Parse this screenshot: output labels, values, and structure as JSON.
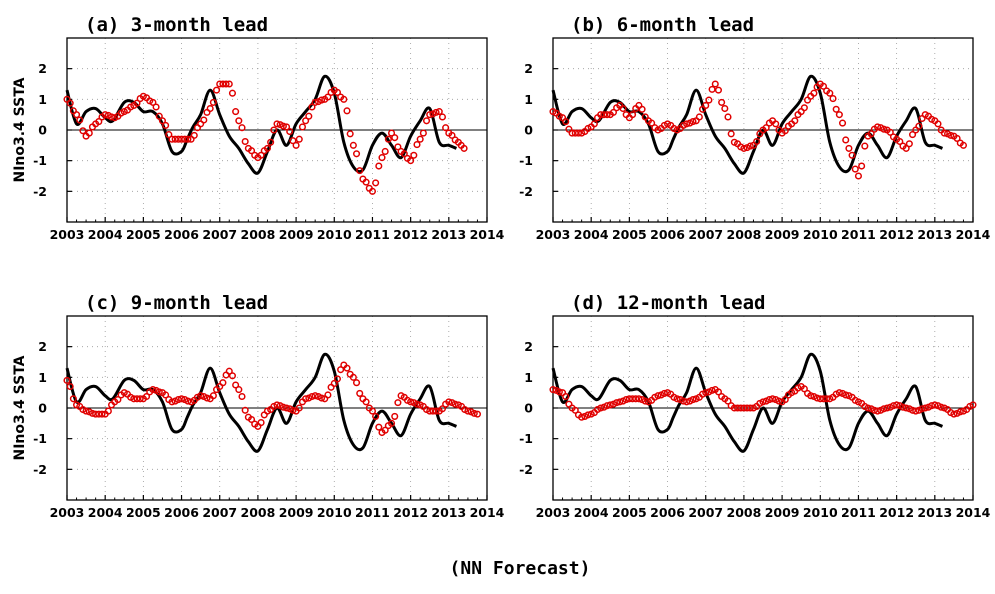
{
  "figure": {
    "caption": "(NN Forecast)"
  },
  "chart_data": [
    {
      "type": "line",
      "title": "(a) 3-month lead",
      "ylabel": "NIno3.4 SSTA",
      "xlim": [
        2003,
        2014
      ],
      "ylim": [
        -3,
        3
      ],
      "x_ticks": [
        "2003",
        "2004",
        "2005",
        "2006",
        "2007",
        "2008",
        "2009",
        "2010",
        "2011",
        "2012",
        "2013",
        "2014"
      ],
      "y_ticks": [
        "2",
        "1",
        "0",
        "-1",
        "-2"
      ],
      "grid": true,
      "series": [
        {
          "style": "black-line",
          "color": "#000000",
          "x": [
            2003.0,
            2003.25,
            2003.5,
            2003.75,
            2004.0,
            2004.2,
            2004.5,
            2004.75,
            2005.0,
            2005.25,
            2005.5,
            2005.75,
            2006.0,
            2006.15,
            2006.3,
            2006.5,
            2006.75,
            2007.0,
            2007.25,
            2007.5,
            2007.75,
            2008.0,
            2008.25,
            2008.5,
            2008.75,
            2009.0,
            2009.25,
            2009.5,
            2009.75,
            2010.0,
            2010.25,
            2010.5,
            2010.75,
            2011.0,
            2011.25,
            2011.5,
            2011.75,
            2012.0,
            2012.25,
            2012.5,
            2012.75,
            2013.0,
            2013.2
          ],
          "y": [
            1.3,
            0.2,
            0.6,
            0.7,
            0.4,
            0.3,
            0.9,
            0.9,
            0.6,
            0.6,
            0.2,
            -0.7,
            -0.7,
            -0.3,
            0.1,
            0.5,
            1.3,
            0.5,
            -0.2,
            -0.6,
            -1.1,
            -1.4,
            -0.7,
            0.0,
            -0.5,
            0.2,
            0.6,
            1.0,
            1.75,
            1.2,
            -0.4,
            -1.2,
            -1.3,
            -0.5,
            -0.1,
            -0.5,
            -0.9,
            -0.2,
            0.3,
            0.7,
            -0.4,
            -0.5,
            -0.6
          ]
        },
        {
          "style": "red-circles",
          "color": "#e00000",
          "x": [
            2003.0,
            2003.25,
            2003.5,
            2003.75,
            2004.0,
            2004.25,
            2004.5,
            2004.75,
            2005.0,
            2005.25,
            2005.5,
            2005.75,
            2006.0,
            2006.25,
            2006.5,
            2006.75,
            2007.0,
            2007.25,
            2007.5,
            2007.75,
            2008.0,
            2008.25,
            2008.5,
            2008.75,
            2009.0,
            2009.25,
            2009.5,
            2009.75,
            2010.0,
            2010.25,
            2010.5,
            2010.75,
            2011.0,
            2011.25,
            2011.5,
            2011.75,
            2012.0,
            2012.25,
            2012.5,
            2012.75,
            2013.0,
            2013.25,
            2013.4
          ],
          "y": [
            1.0,
            0.5,
            -0.2,
            0.2,
            0.5,
            0.4,
            0.6,
            0.8,
            1.1,
            0.9,
            0.3,
            -0.3,
            -0.3,
            -0.3,
            0.2,
            0.7,
            1.5,
            1.5,
            0.3,
            -0.6,
            -0.9,
            -0.6,
            0.2,
            0.1,
            -0.5,
            0.3,
            0.9,
            1.0,
            1.3,
            1.0,
            -0.5,
            -1.6,
            -2.0,
            -0.9,
            -0.1,
            -0.7,
            -1.0,
            -0.3,
            0.5,
            0.6,
            -0.1,
            -0.4,
            -0.6
          ]
        }
      ]
    },
    {
      "type": "line",
      "title": "(b) 6-month lead",
      "ylabel": "",
      "xlim": [
        2003,
        2014
      ],
      "ylim": [
        -3,
        3
      ],
      "x_ticks": [
        "2003",
        "2004",
        "2005",
        "2006",
        "2007",
        "2008",
        "2009",
        "2010",
        "2011",
        "2012",
        "2013",
        "2014"
      ],
      "y_ticks": [
        "2",
        "1",
        "0",
        "-1",
        "-2"
      ],
      "grid": true,
      "series": [
        {
          "style": "black-line",
          "color": "#000000",
          "x": [
            2003.0,
            2003.25,
            2003.5,
            2003.75,
            2004.0,
            2004.2,
            2004.5,
            2004.75,
            2005.0,
            2005.25,
            2005.5,
            2005.75,
            2006.0,
            2006.15,
            2006.3,
            2006.5,
            2006.75,
            2007.0,
            2007.25,
            2007.5,
            2007.75,
            2008.0,
            2008.25,
            2008.5,
            2008.75,
            2009.0,
            2009.25,
            2009.5,
            2009.75,
            2010.0,
            2010.25,
            2010.5,
            2010.75,
            2011.0,
            2011.25,
            2011.5,
            2011.75,
            2012.0,
            2012.25,
            2012.5,
            2012.75,
            2013.0,
            2013.2
          ],
          "y": [
            1.3,
            0.2,
            0.6,
            0.7,
            0.4,
            0.3,
            0.9,
            0.9,
            0.6,
            0.6,
            0.2,
            -0.7,
            -0.7,
            -0.3,
            0.1,
            0.5,
            1.3,
            0.5,
            -0.2,
            -0.6,
            -1.1,
            -1.4,
            -0.7,
            0.0,
            -0.5,
            0.2,
            0.6,
            1.0,
            1.75,
            1.2,
            -0.4,
            -1.2,
            -1.3,
            -0.5,
            -0.1,
            -0.5,
            -0.9,
            -0.2,
            0.3,
            0.7,
            -0.4,
            -0.5,
            -0.6
          ]
        },
        {
          "style": "red-circles",
          "color": "#e00000",
          "x": [
            2003.0,
            2003.25,
            2003.5,
            2003.75,
            2004.0,
            2004.25,
            2004.5,
            2004.75,
            2005.0,
            2005.25,
            2005.5,
            2005.75,
            2006.0,
            2006.25,
            2006.5,
            2006.75,
            2007.0,
            2007.25,
            2007.5,
            2007.75,
            2008.0,
            2008.25,
            2008.5,
            2008.75,
            2009.0,
            2009.25,
            2009.5,
            2009.75,
            2010.0,
            2010.25,
            2010.5,
            2010.75,
            2011.0,
            2011.25,
            2011.5,
            2011.75,
            2012.0,
            2012.25,
            2012.5,
            2012.75,
            2013.0,
            2013.25,
            2013.5,
            2013.75
          ],
          "y": [
            0.6,
            0.4,
            -0.1,
            -0.1,
            0.1,
            0.5,
            0.5,
            0.8,
            0.4,
            0.8,
            0.3,
            0.0,
            0.2,
            0.0,
            0.2,
            0.3,
            0.8,
            1.5,
            0.7,
            -0.4,
            -0.6,
            -0.5,
            0.0,
            0.3,
            -0.1,
            0.2,
            0.6,
            1.1,
            1.5,
            1.2,
            0.5,
            -0.6,
            -1.5,
            -0.2,
            0.1,
            0.0,
            -0.3,
            -0.6,
            0.0,
            0.5,
            0.3,
            -0.1,
            -0.2,
            -0.5
          ]
        }
      ]
    },
    {
      "type": "line",
      "title": "(c) 9-month lead",
      "ylabel": "NIno3.4 SSTA",
      "xlim": [
        2003,
        2014
      ],
      "ylim": [
        -3,
        3
      ],
      "x_ticks": [
        "2003",
        "2004",
        "2005",
        "2006",
        "2007",
        "2008",
        "2009",
        "2010",
        "2011",
        "2012",
        "2013",
        "2014"
      ],
      "y_ticks": [
        "2",
        "1",
        "0",
        "-1",
        "-2"
      ],
      "grid": true,
      "series": [
        {
          "style": "black-line",
          "color": "#000000",
          "x": [
            2003.0,
            2003.25,
            2003.5,
            2003.75,
            2004.0,
            2004.2,
            2004.5,
            2004.75,
            2005.0,
            2005.25,
            2005.5,
            2005.75,
            2006.0,
            2006.15,
            2006.3,
            2006.5,
            2006.75,
            2007.0,
            2007.25,
            2007.5,
            2007.75,
            2008.0,
            2008.25,
            2008.5,
            2008.75,
            2009.0,
            2009.25,
            2009.5,
            2009.75,
            2010.0,
            2010.25,
            2010.5,
            2010.75,
            2011.0,
            2011.25,
            2011.5,
            2011.75,
            2012.0,
            2012.25,
            2012.5,
            2012.75,
            2013.0,
            2013.2
          ],
          "y": [
            1.3,
            0.2,
            0.6,
            0.7,
            0.4,
            0.3,
            0.9,
            0.9,
            0.6,
            0.6,
            0.2,
            -0.7,
            -0.7,
            -0.3,
            0.1,
            0.5,
            1.3,
            0.5,
            -0.2,
            -0.6,
            -1.1,
            -1.4,
            -0.7,
            0.0,
            -0.5,
            0.2,
            0.6,
            1.0,
            1.75,
            1.2,
            -0.4,
            -1.2,
            -1.3,
            -0.5,
            -0.1,
            -0.5,
            -0.9,
            -0.2,
            0.3,
            0.7,
            -0.4,
            -0.5,
            -0.6
          ]
        },
        {
          "style": "red-circles",
          "color": "#e00000",
          "x": [
            2003.0,
            2003.25,
            2003.5,
            2003.75,
            2004.0,
            2004.25,
            2004.5,
            2004.75,
            2005.0,
            2005.25,
            2005.5,
            2005.75,
            2006.0,
            2006.25,
            2006.5,
            2006.75,
            2007.0,
            2007.25,
            2007.5,
            2007.75,
            2008.0,
            2008.25,
            2008.5,
            2008.75,
            2009.0,
            2009.25,
            2009.5,
            2009.75,
            2010.0,
            2010.25,
            2010.5,
            2010.75,
            2011.0,
            2011.25,
            2011.5,
            2011.75,
            2012.0,
            2012.25,
            2012.5,
            2012.75,
            2013.0,
            2013.25,
            2013.5,
            2013.75
          ],
          "y": [
            0.9,
            0.1,
            -0.1,
            -0.2,
            -0.2,
            0.2,
            0.5,
            0.3,
            0.3,
            0.6,
            0.5,
            0.2,
            0.3,
            0.2,
            0.4,
            0.3,
            0.7,
            1.2,
            0.6,
            -0.3,
            -0.6,
            -0.1,
            0.1,
            0.0,
            -0.1,
            0.3,
            0.4,
            0.3,
            0.8,
            1.4,
            1.0,
            0.3,
            -0.1,
            -0.8,
            -0.5,
            0.4,
            0.2,
            0.1,
            -0.1,
            -0.1,
            0.2,
            0.1,
            -0.1,
            -0.2
          ]
        }
      ]
    },
    {
      "type": "line",
      "title": "(d) 12-month lead",
      "ylabel": "",
      "xlim": [
        2003,
        2014
      ],
      "ylim": [
        -3,
        3
      ],
      "x_ticks": [
        "2003",
        "2004",
        "2005",
        "2006",
        "2007",
        "2008",
        "2009",
        "2010",
        "2011",
        "2012",
        "2013",
        "2014"
      ],
      "y_ticks": [
        "2",
        "1",
        "0",
        "-1",
        "-2"
      ],
      "grid": true,
      "series": [
        {
          "style": "black-line",
          "color": "#000000",
          "x": [
            2003.0,
            2003.25,
            2003.5,
            2003.75,
            2004.0,
            2004.2,
            2004.5,
            2004.75,
            2005.0,
            2005.25,
            2005.5,
            2005.75,
            2006.0,
            2006.15,
            2006.3,
            2006.5,
            2006.75,
            2007.0,
            2007.25,
            2007.5,
            2007.75,
            2008.0,
            2008.25,
            2008.5,
            2008.75,
            2009.0,
            2009.25,
            2009.5,
            2009.75,
            2010.0,
            2010.25,
            2010.5,
            2010.75,
            2011.0,
            2011.25,
            2011.5,
            2011.75,
            2012.0,
            2012.25,
            2012.5,
            2012.75,
            2013.0,
            2013.2
          ],
          "y": [
            1.3,
            0.2,
            0.6,
            0.7,
            0.4,
            0.3,
            0.9,
            0.9,
            0.6,
            0.6,
            0.2,
            -0.7,
            -0.7,
            -0.3,
            0.1,
            0.5,
            1.3,
            0.5,
            -0.2,
            -0.6,
            -1.1,
            -1.4,
            -0.7,
            0.0,
            -0.5,
            0.2,
            0.6,
            1.0,
            1.75,
            1.2,
            -0.4,
            -1.2,
            -1.3,
            -0.5,
            -0.1,
            -0.5,
            -0.9,
            -0.2,
            0.3,
            0.7,
            -0.4,
            -0.5,
            -0.6
          ]
        },
        {
          "style": "red-circles",
          "color": "#e00000",
          "x": [
            2003.0,
            2003.25,
            2003.5,
            2003.75,
            2004.0,
            2004.25,
            2004.5,
            2004.75,
            2005.0,
            2005.25,
            2005.5,
            2005.75,
            2006.0,
            2006.25,
            2006.5,
            2006.75,
            2007.0,
            2007.25,
            2007.5,
            2007.75,
            2008.0,
            2008.25,
            2008.5,
            2008.75,
            2009.0,
            2009.25,
            2009.5,
            2009.75,
            2010.0,
            2010.25,
            2010.5,
            2010.75,
            2011.0,
            2011.25,
            2011.5,
            2011.75,
            2012.0,
            2012.25,
            2012.5,
            2012.75,
            2013.0,
            2013.25,
            2013.5,
            2013.75,
            2014.0
          ],
          "y": [
            0.6,
            0.5,
            0.0,
            -0.3,
            -0.2,
            0.0,
            0.1,
            0.2,
            0.3,
            0.3,
            0.2,
            0.4,
            0.5,
            0.3,
            0.2,
            0.3,
            0.5,
            0.6,
            0.3,
            0.0,
            0.0,
            0.0,
            0.2,
            0.3,
            0.2,
            0.5,
            0.7,
            0.4,
            0.3,
            0.3,
            0.5,
            0.4,
            0.2,
            0.0,
            -0.1,
            0.0,
            0.1,
            0.0,
            -0.1,
            0.0,
            0.1,
            0.0,
            -0.2,
            -0.1,
            0.1
          ]
        }
      ]
    }
  ]
}
